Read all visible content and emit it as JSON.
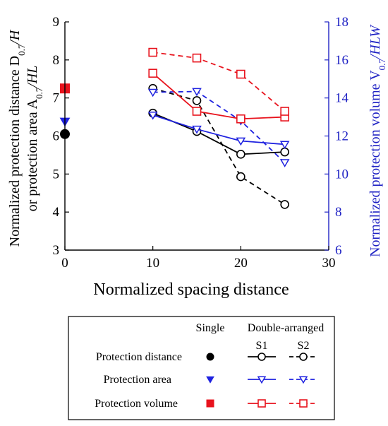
{
  "chart_data": {
    "type": "line",
    "xlabel": "Normalized spacing distance",
    "ylabel_line1": "Normalized protection distance D",
    "ylabel_line1_sub": "0.7",
    "ylabel_line1_tail": "/H",
    "ylabel_line2": "or protection area A",
    "ylabel_line2_sub": "0.7",
    "ylabel_line2_tail": "/HL",
    "ylabel_right": "Normalized protection volume V",
    "ylabel_right_sub": "0.7",
    "ylabel_right_tail": "/HLW",
    "xlim": [
      0,
      30
    ],
    "ylim_left": [
      3,
      9
    ],
    "ylim_right": [
      6,
      18
    ],
    "x_ticks": [
      "0",
      "10",
      "20",
      "30"
    ],
    "y_left_ticks": [
      "3",
      "4",
      "5",
      "6",
      "7",
      "8",
      "9"
    ],
    "y_right_ticks": [
      "6",
      "8",
      "10",
      "12",
      "14",
      "16",
      "18"
    ],
    "single": [
      {
        "quantity": "distance",
        "x": 0,
        "y": 6.05,
        "axis": "left",
        "color": "#000000",
        "marker": "circle-filled"
      },
      {
        "quantity": "area",
        "x": 0,
        "y": 6.38,
        "axis": "left",
        "color": "#1f22e0",
        "marker": "triangle-down-filled"
      },
      {
        "quantity": "volume",
        "x": 0,
        "y": 14.5,
        "axis": "right",
        "color": "#e8131d",
        "marker": "square-filled"
      }
    ],
    "series": [
      {
        "quantity": "distance",
        "layout": "S1",
        "axis": "left",
        "color": "#000000",
        "dash": false,
        "marker": "circle",
        "x": [
          10,
          15,
          20,
          25
        ],
        "y": [
          6.6,
          6.12,
          5.52,
          5.58
        ]
      },
      {
        "quantity": "distance",
        "layout": "S2",
        "axis": "left",
        "color": "#000000",
        "dash": true,
        "marker": "circle",
        "x": [
          10,
          15,
          20,
          25
        ],
        "y": [
          7.25,
          6.93,
          4.93,
          4.2
        ]
      },
      {
        "quantity": "area",
        "layout": "S1",
        "axis": "left",
        "color": "#1f22e0",
        "dash": false,
        "marker": "triangle-down",
        "x": [
          10,
          15,
          20,
          25
        ],
        "y": [
          6.55,
          6.18,
          5.87,
          5.78
        ]
      },
      {
        "quantity": "area",
        "layout": "S2",
        "axis": "left",
        "color": "#1f22e0",
        "dash": true,
        "marker": "triangle-down",
        "x": [
          10,
          15,
          20,
          25
        ],
        "y": [
          7.15,
          7.17,
          6.4,
          5.3
        ]
      },
      {
        "quantity": "volume",
        "layout": "S1",
        "axis": "right",
        "color": "#e8131d",
        "dash": false,
        "marker": "square",
        "x": [
          10,
          15,
          20,
          25
        ],
        "y": [
          15.3,
          13.3,
          12.9,
          13.0
        ]
      },
      {
        "quantity": "volume",
        "layout": "S2",
        "axis": "right",
        "color": "#e8131d",
        "dash": true,
        "marker": "square",
        "x": [
          10,
          15,
          20,
          25
        ],
        "y": [
          16.4,
          16.1,
          15.25,
          13.3
        ]
      }
    ]
  },
  "legend": {
    "col_single": "Single",
    "col_double": "Double-arranged",
    "col_s1": "S1",
    "col_s2": "S2",
    "rows": [
      {
        "label": "Protection distance",
        "quantity": "distance"
      },
      {
        "label": "Protection area",
        "quantity": "area"
      },
      {
        "label": "Protection volume",
        "quantity": "volume"
      }
    ]
  }
}
